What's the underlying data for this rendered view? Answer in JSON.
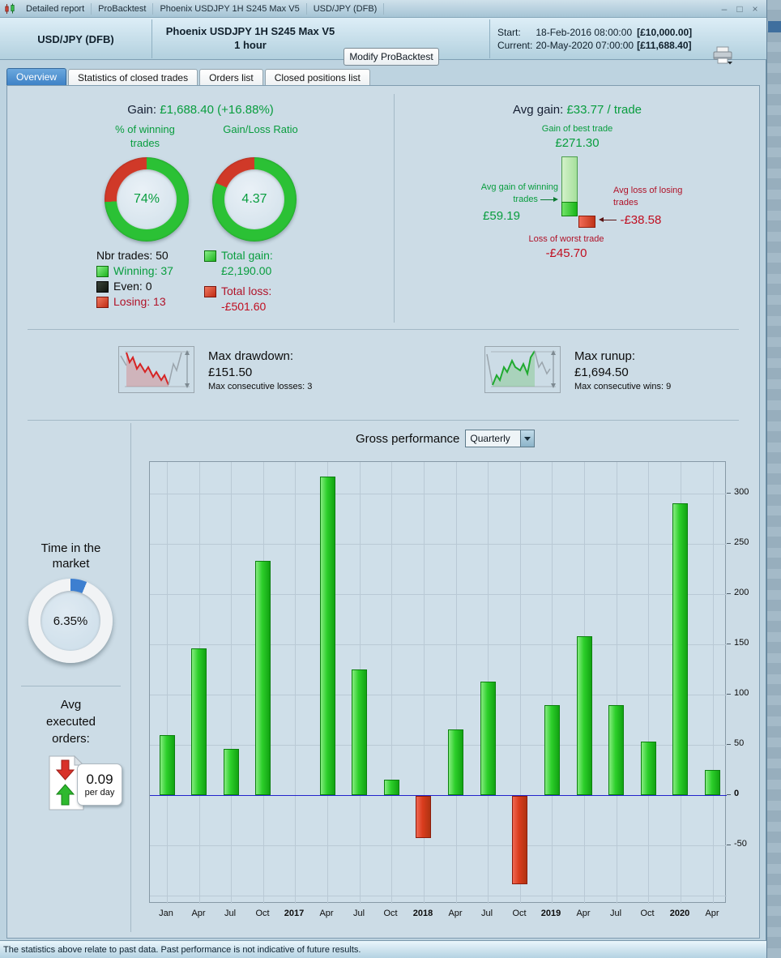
{
  "window": {
    "title_segments": [
      "Detailed report",
      "ProBacktest",
      "Phoenix USDJPY 1H S245 Max V5",
      "USD/JPY (DFB)"
    ],
    "controls": {
      "minimize": "–",
      "maximize": "□",
      "close": "×"
    }
  },
  "header": {
    "instrument": "USD/JPY (DFB)",
    "system_line1": "Phoenix USDJPY 1H S245 Max V5",
    "system_line2": "1 hour",
    "modify_button": "Modify ProBacktest",
    "start_label": "Start:",
    "start_datetime": "18-Feb-2016 08:00:00",
    "start_value": "[£10,000.00]",
    "current_label": "Current:",
    "current_datetime": "20-May-2020 07:00:00",
    "current_value": "[£11,688.40]"
  },
  "tabs": [
    {
      "label": "Overview"
    },
    {
      "label": "Statistics of closed trades"
    },
    {
      "label": "Orders list"
    },
    {
      "label": "Closed positions list"
    }
  ],
  "stats": {
    "gain_label": "Gain:",
    "gain_value": "£1,688.40 (+16.88%)",
    "winning_header_1": "% of winning",
    "winning_header_2": "trades",
    "ratio_header": "Gain/Loss Ratio",
    "winning_pct": "74%",
    "ratio_value": "4.37",
    "nbr_trades": "Nbr trades: 50",
    "winning": "Winning: 37",
    "even": "Even: 0",
    "losing": "Losing: 13",
    "total_gain_label": "Total gain:",
    "total_gain_value": "£2,190.00",
    "total_loss_label": "Total loss:",
    "total_loss_value": "-£501.60"
  },
  "avg": {
    "avg_gain_label": "Avg gain:",
    "avg_gain_value": "£33.77 / trade",
    "best_label": "Gain of best trade",
    "best_value": "£271.30",
    "avg_win_label_1": "Avg gain of winning",
    "avg_win_label_2": "trades",
    "avg_win_value": "£59.19",
    "avg_loss_label_1": "Avg loss of losing",
    "avg_loss_label_2": "trades",
    "avg_loss_value": "-£38.58",
    "worst_label": "Loss of worst trade",
    "worst_value": "-£45.70"
  },
  "risk": {
    "dd_label": "Max drawdown:",
    "dd_value": "£151.50",
    "dd_consec": "Max consecutive losses: 3",
    "ru_label": "Max runup:",
    "ru_value": "£1,694.50",
    "ru_consec": "Max consecutive wins: 9"
  },
  "left_panel": {
    "tim_label_1": "Time in the",
    "tim_label_2": "market",
    "tim_value": "6.35%",
    "orders_label_1": "Avg",
    "orders_label_2": "executed",
    "orders_label_3": "orders:",
    "orders_value": "0.09",
    "orders_unit": "per day"
  },
  "performance": {
    "label": "Gross performance",
    "period": "Quarterly"
  },
  "donuts": {
    "winning": {
      "green_pct": 74,
      "green": "#2bc135",
      "red": "#d03928"
    },
    "ratio": {
      "green_pct": 81.4,
      "green": "#2bc135",
      "red": "#d03928"
    },
    "time": {
      "blue_pct": 6.35,
      "blue": "#3d7fd0",
      "rest": "#f1f3f5"
    }
  },
  "chart_data": {
    "type": "bar",
    "title": "Gross performance",
    "period": "Quarterly",
    "categories": [
      "Jan",
      "Apr",
      "Jul",
      "Oct",
      "2017",
      "Apr",
      "Jul",
      "Oct",
      "2018",
      "Apr",
      "Jul",
      "Oct",
      "2019",
      "Apr",
      "Jul",
      "Oct",
      "2020",
      "Apr"
    ],
    "bold_categories": [
      4,
      8,
      12,
      16
    ],
    "values": [
      60,
      146,
      46,
      233,
      0,
      317,
      125,
      15,
      -42,
      65,
      113,
      -88,
      90,
      158,
      90,
      53,
      291,
      25
    ],
    "yticks": [
      300,
      250,
      200,
      150,
      100,
      50,
      0,
      -50
    ],
    "grid_values": [
      300,
      250,
      200,
      150,
      100,
      50,
      -50,
      -100
    ],
    "ylim": [
      -108,
      332
    ],
    "xlabel": "",
    "ylabel": "",
    "grid": true,
    "legend_position": "none",
    "zero_line_color": "#2424cc",
    "bar_positive_color": "#22cc22",
    "bar_negative_color": "#d23a1a"
  },
  "status_bar": {
    "text": "The statistics above relate to past data. Past performance is not indicative of future results."
  }
}
